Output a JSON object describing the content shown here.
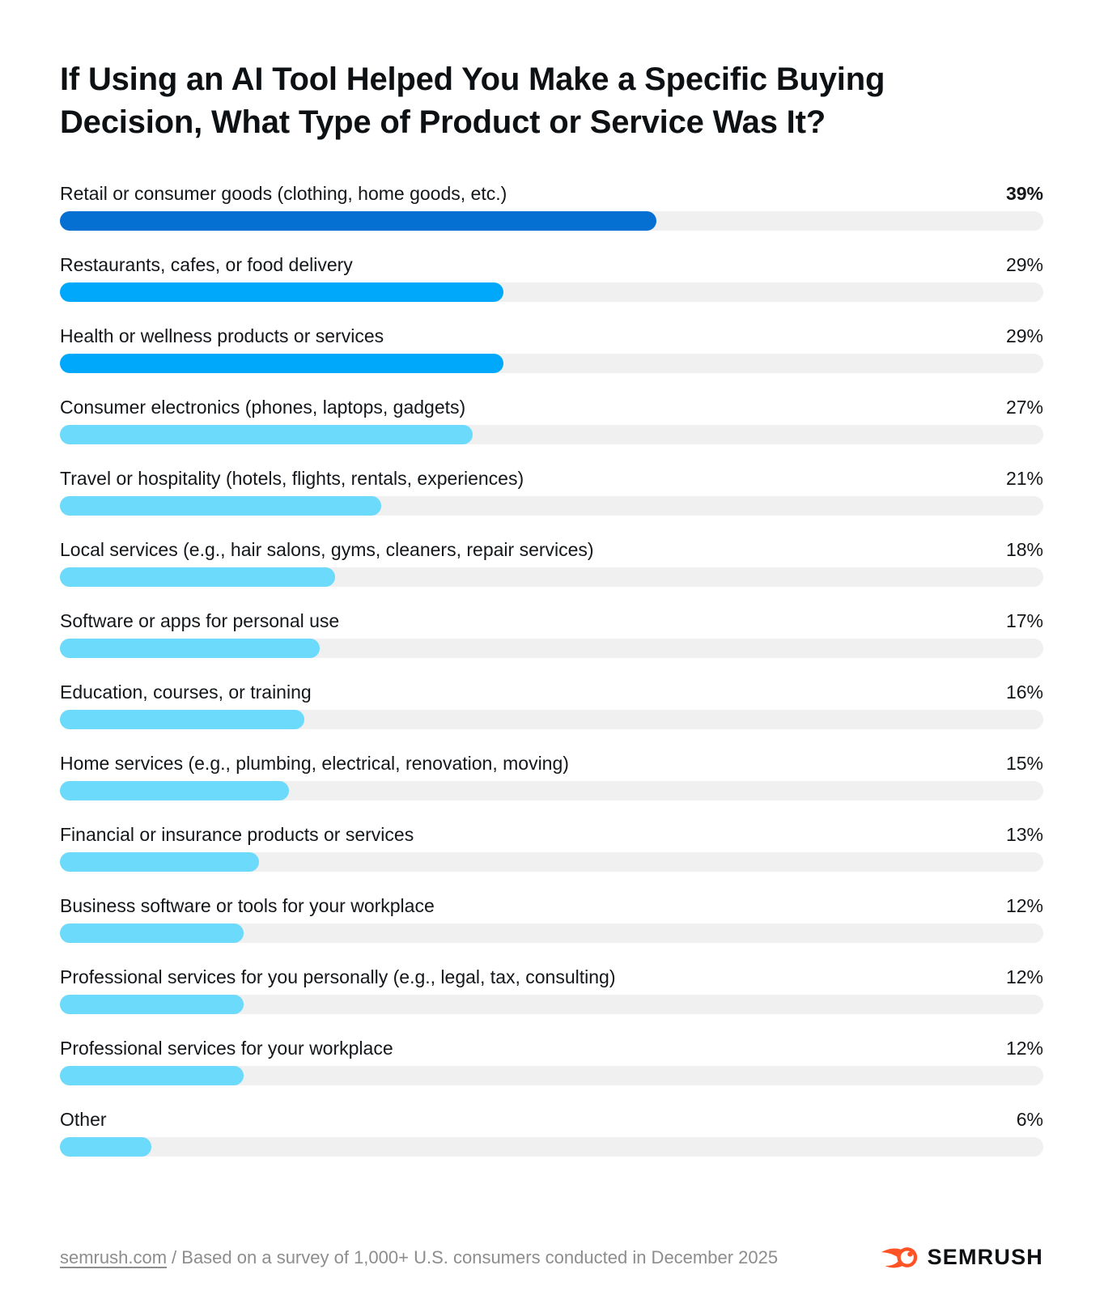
{
  "chart_data": {
    "type": "bar",
    "orientation": "horizontal",
    "title": "If Using an AI Tool Helped You Make a Specific Buying Decision, What Type of Product or Service Was It?",
    "categories": [
      "Retail or consumer goods (clothing, home goods, etc.)",
      "Restaurants, cafes, or food delivery",
      "Health or wellness products or services",
      "Consumer electronics (phones, laptops, gadgets)",
      "Travel or hospitality (hotels, flights, rentals, experiences)",
      "Local services (e.g., hair salons, gyms, cleaners, repair services)",
      "Software or apps for personal use",
      "Education, courses, or training",
      "Home services (e.g., plumbing, electrical, renovation, moving)",
      "Financial or insurance products or services",
      "Business software or tools for your workplace",
      "Professional services for you personally (e.g., legal, tax, consulting)",
      "Professional services for your workplace",
      "Other"
    ],
    "values": [
      39,
      29,
      29,
      27,
      21,
      18,
      17,
      16,
      15,
      13,
      12,
      12,
      12,
      6
    ],
    "value_labels": [
      "39%",
      "29%",
      "29%",
      "27%",
      "21%",
      "18%",
      "17%",
      "16%",
      "15%",
      "13%",
      "12%",
      "12%",
      "12%",
      "6%"
    ],
    "unit": "%",
    "bar_colors": [
      "#0670D2",
      "#00A8FC",
      "#00A8FC",
      "#6BDAFB",
      "#6BDAFB",
      "#6BDAFB",
      "#6BDAFB",
      "#6BDAFB",
      "#6BDAFB",
      "#6BDAFB",
      "#6BDAFB",
      "#6BDAFB",
      "#6BDAFB",
      "#6BDAFB"
    ],
    "emphasized_index": 0,
    "layout": {
      "track_color": "#F0F0F0",
      "bar_scale_max": 64.3,
      "value_position": "right-aligned",
      "grid": false,
      "legend": false
    }
  },
  "footer": {
    "source_link": "semrush.com",
    "source_rest": "/ Based on a survey of 1,000+ U.S. consumers conducted in December 2025",
    "brand": "SEMRUSH",
    "brand_color": "#FF5225",
    "brand_text_color": "#0D0F12"
  }
}
